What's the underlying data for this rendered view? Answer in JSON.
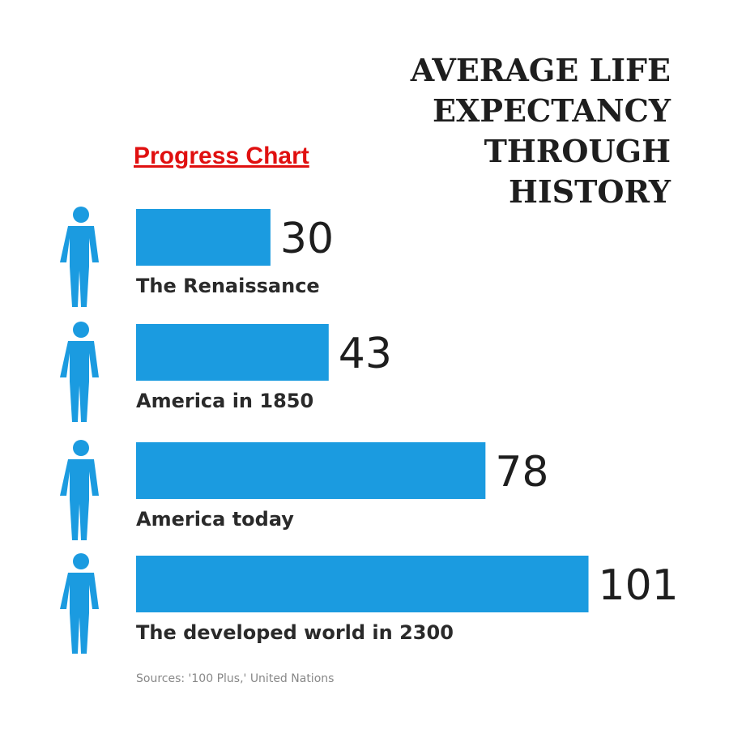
{
  "chart_data": {
    "type": "bar",
    "orientation": "horizontal",
    "title": "AVERAGE LIFE EXPECTANCY THROUGH HISTORY",
    "label": "Progress Chart",
    "source": "Sources: '100 Plus,' United Nations",
    "categories": [
      "The Renaissance",
      "America in 1850",
      "America today",
      "The developed world in 2300"
    ],
    "values": [
      30,
      43,
      78,
      101
    ],
    "color": "#1b9be0"
  }
}
